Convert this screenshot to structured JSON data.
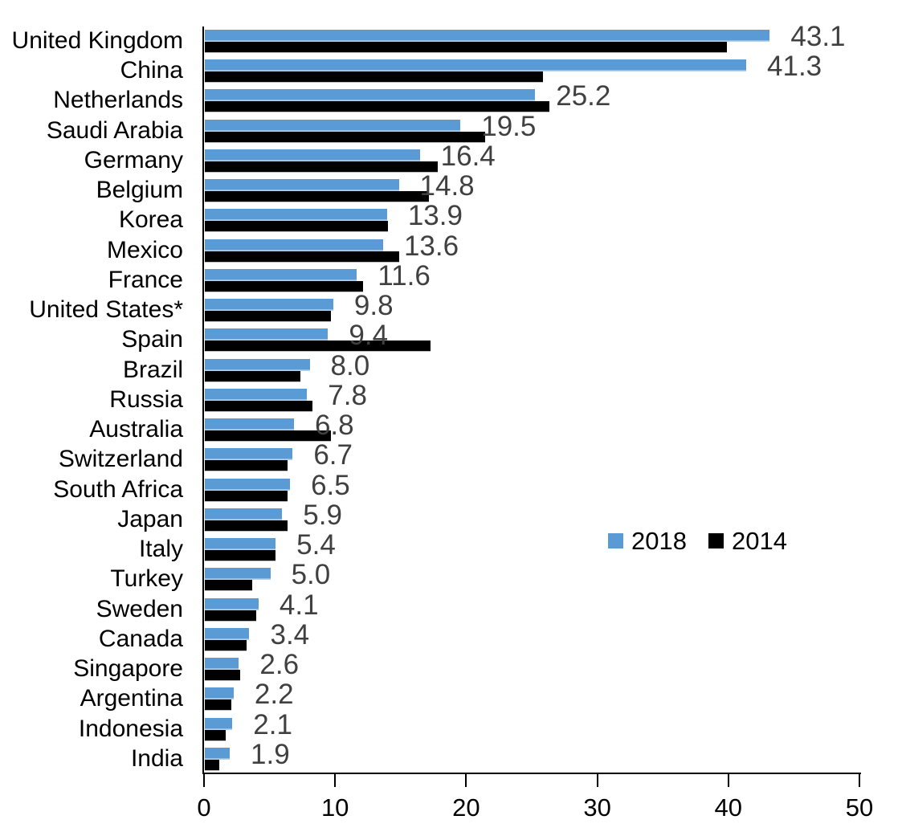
{
  "chart_data": {
    "type": "bar",
    "orientation": "horizontal",
    "title": "",
    "xlabel": "",
    "ylabel": "",
    "xlim": [
      0,
      50
    ],
    "x_ticks": [
      "0",
      "10",
      "20",
      "30",
      "40",
      "50"
    ],
    "grid": false,
    "legend_position": "center-right",
    "categories": [
      "United Kingdom",
      "China",
      "Netherlands",
      "Saudi Arabia",
      "Germany",
      "Belgium",
      "Korea",
      "Mexico",
      "France",
      "United States*",
      "Spain",
      "Brazil",
      "Russia",
      "Australia",
      "Switzerland",
      "South Africa",
      "Japan",
      "Italy",
      "Turkey",
      "Sweden",
      "Canada",
      "Singapore",
      "Argentina",
      "Indonesia",
      "India"
    ],
    "series": [
      {
        "name": "2018",
        "color": "#5B9BD5",
        "values": [
          43.1,
          41.3,
          25.2,
          19.5,
          16.4,
          14.8,
          13.9,
          13.6,
          11.6,
          9.8,
          9.4,
          8.0,
          7.8,
          6.8,
          6.7,
          6.5,
          5.9,
          5.4,
          5.0,
          4.1,
          3.4,
          2.6,
          2.2,
          2.1,
          1.9
        ]
      },
      {
        "name": "2014",
        "color": "#000000",
        "values": [
          39.8,
          25.8,
          26.3,
          21.4,
          17.8,
          17.1,
          14.0,
          14.8,
          12.1,
          9.6,
          17.2,
          7.3,
          8.2,
          9.6,
          6.3,
          6.3,
          6.3,
          5.4,
          3.6,
          3.9,
          3.2,
          2.7,
          2.0,
          1.6,
          1.1
        ]
      }
    ],
    "data_labels": [
      "43.1",
      "41.3",
      "25.2",
      "19.5",
      "16.4",
      "14.8",
      "13.9",
      "13.6",
      "11.6",
      "9.8",
      "9.4",
      "8.0",
      "7.8",
      "6.8",
      "6.7",
      "6.5",
      "5.9",
      "5.4",
      "5.0",
      "4.1",
      "3.4",
      "2.6",
      "2.2",
      "2.1",
      "1.9"
    ]
  },
  "legend": {
    "items": [
      {
        "label": "2018",
        "color": "#5B9BD5"
      },
      {
        "label": "2014",
        "color": "#000000"
      }
    ]
  },
  "colors": {
    "series_2018": "#5B9BD5",
    "series_2014": "#000000",
    "data_label_text": "#404040",
    "axis_text": "#000000",
    "background": "#FFFFFF"
  }
}
